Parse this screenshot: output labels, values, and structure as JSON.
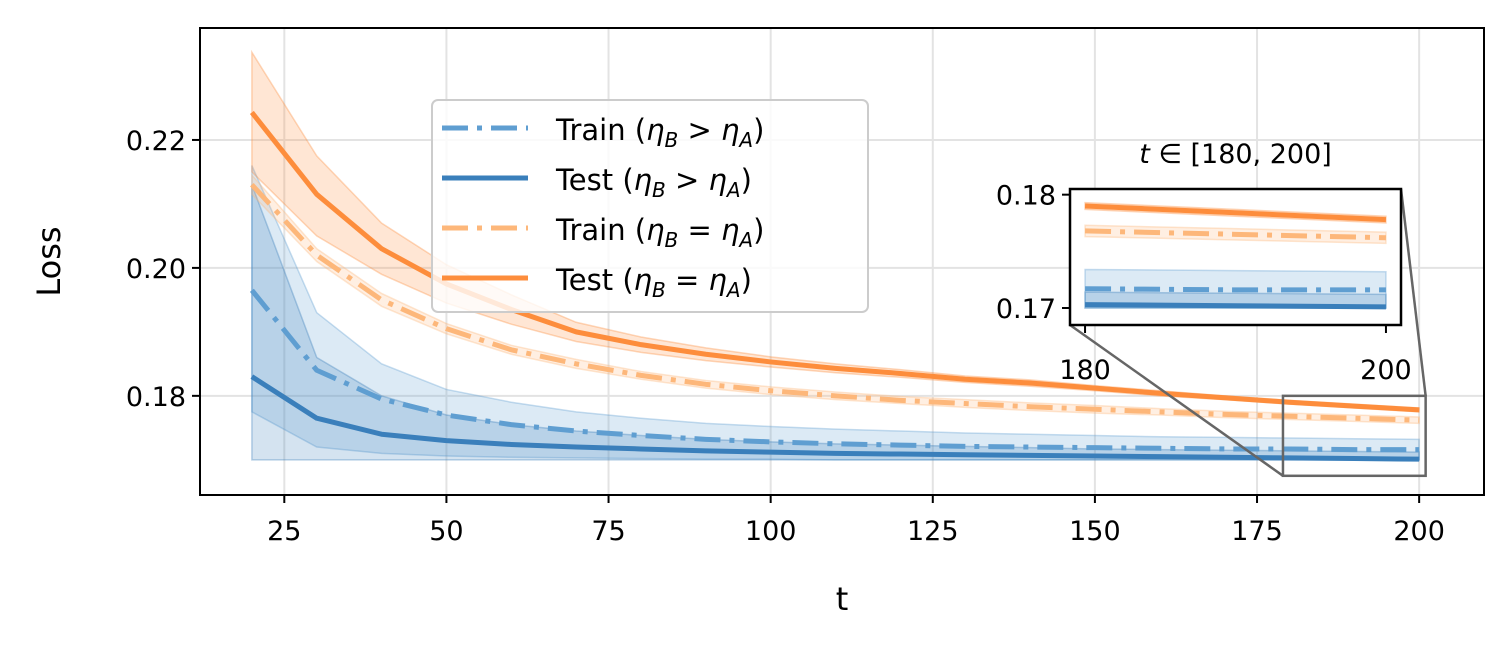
{
  "chart_data": {
    "type": "line",
    "xlabel": "t",
    "ylabel": "Loss",
    "xlim": [
      12,
      210
    ],
    "ylim": [
      0.1645,
      0.2375
    ],
    "xticks": [
      25,
      50,
      75,
      100,
      125,
      150,
      175,
      200
    ],
    "yticks": [
      0.18,
      0.2,
      0.22
    ],
    "xtick_labels": [
      "25",
      "50",
      "75",
      "100",
      "125",
      "150",
      "175",
      "200"
    ],
    "ytick_labels": [
      "0.18",
      "0.20",
      "0.22"
    ],
    "grid": true,
    "legend_position": "upper center",
    "x": [
      20,
      30,
      40,
      50,
      60,
      70,
      80,
      90,
      100,
      110,
      120,
      130,
      140,
      150,
      160,
      170,
      180,
      190,
      200
    ],
    "series": [
      {
        "name": "Train (η_B > η_A)",
        "label_parts": [
          "Train (",
          "η",
          "B",
          " > ",
          "η",
          "A",
          ")"
        ],
        "color": "#5f9ed1",
        "style": "dashdot",
        "values": [
          0.1965,
          0.184,
          0.1795,
          0.177,
          0.1755,
          0.1745,
          0.1738,
          0.1732,
          0.1728,
          0.1725,
          0.1723,
          0.1721,
          0.172,
          0.1719,
          0.1718,
          0.1717,
          0.1717,
          0.1716,
          0.1716
        ],
        "lower": [
          0.1775,
          0.172,
          0.171,
          0.1706,
          0.1704,
          0.1703,
          0.1702,
          0.1701,
          0.1701,
          0.17,
          0.17,
          0.17,
          0.17,
          0.17,
          0.17,
          0.17,
          0.17,
          0.17,
          0.17
        ],
        "upper": [
          0.216,
          0.193,
          0.185,
          0.181,
          0.179,
          0.1775,
          0.1765,
          0.1757,
          0.1752,
          0.1748,
          0.1745,
          0.1742,
          0.174,
          0.1738,
          0.1736,
          0.1735,
          0.1734,
          0.1733,
          0.1732
        ]
      },
      {
        "name": "Test (η_B > η_A)",
        "label_parts": [
          "Test (",
          "η",
          "B",
          " > ",
          "η",
          "A",
          ")"
        ],
        "color": "#3a7fbb",
        "style": "solid",
        "values": [
          0.183,
          0.1765,
          0.174,
          0.173,
          0.1724,
          0.172,
          0.1717,
          0.1714,
          0.1712,
          0.171,
          0.1709,
          0.1708,
          0.1707,
          0.1706,
          0.1705,
          0.1704,
          0.1703,
          0.1702,
          0.1701
        ],
        "lower": [
          0.17,
          0.17,
          0.17,
          0.17,
          0.17,
          0.17,
          0.17,
          0.17,
          0.17,
          0.17,
          0.17,
          0.17,
          0.17,
          0.17,
          0.17,
          0.17,
          0.17,
          0.17,
          0.17
        ],
        "upper": [
          0.213,
          0.186,
          0.18,
          0.177,
          0.1755,
          0.1745,
          0.1738,
          0.1732,
          0.1728,
          0.1725,
          0.1723,
          0.1721,
          0.1719,
          0.1717,
          0.1716,
          0.1715,
          0.1714,
          0.1713,
          0.1712
        ]
      },
      {
        "name": "Train (η_B = η_A)",
        "label_parts": [
          "Train (",
          "η",
          "B",
          " = ",
          "η",
          "A",
          ")"
        ],
        "color": "#fdb77a",
        "style": "dashdot",
        "values": [
          0.213,
          0.202,
          0.195,
          0.1905,
          0.1872,
          0.185,
          0.1832,
          0.1818,
          0.1808,
          0.18,
          0.1793,
          0.1788,
          0.1783,
          0.1779,
          0.1775,
          0.1771,
          0.1768,
          0.1765,
          0.1762
        ],
        "lower": [
          0.2115,
          0.201,
          0.194,
          0.1897,
          0.1865,
          0.1843,
          0.1826,
          0.1812,
          0.1802,
          0.1794,
          0.1788,
          0.1782,
          0.1777,
          0.1773,
          0.177,
          0.1766,
          0.1763,
          0.176,
          0.1757
        ],
        "upper": [
          0.2145,
          0.203,
          0.196,
          0.1913,
          0.1879,
          0.1857,
          0.1838,
          0.1824,
          0.1814,
          0.1806,
          0.1799,
          0.1794,
          0.1789,
          0.1785,
          0.178,
          0.1776,
          0.1773,
          0.177,
          0.1767
        ]
      },
      {
        "name": "Test (η_B = η_A)",
        "label_parts": [
          "Test (",
          "η",
          "B",
          " = ",
          "η",
          "A",
          ")"
        ],
        "color": "#fd8d3c",
        "style": "solid",
        "values": [
          0.2243,
          0.2115,
          0.203,
          0.1975,
          0.1935,
          0.19,
          0.188,
          0.1865,
          0.1853,
          0.1843,
          0.1835,
          0.1826,
          0.182,
          0.1812,
          0.1804,
          0.1797,
          0.179,
          0.1784,
          0.1778
        ],
        "lower": [
          0.215,
          0.205,
          0.199,
          0.1945,
          0.1912,
          0.1885,
          0.1868,
          0.1855,
          0.1845,
          0.1836,
          0.1829,
          0.1821,
          0.1815,
          0.1808,
          0.18,
          0.1794,
          0.1787,
          0.1781,
          0.1775
        ],
        "upper": [
          0.2337,
          0.2175,
          0.207,
          0.2005,
          0.1958,
          0.1915,
          0.1892,
          0.1875,
          0.1861,
          0.185,
          0.1841,
          0.1831,
          0.1825,
          0.1816,
          0.1808,
          0.18,
          0.1793,
          0.1787,
          0.1781
        ]
      }
    ],
    "inset": {
      "title_parts": [
        "t",
        " ∈ [180, 200]"
      ],
      "xlim": [
        179,
        201
      ],
      "ylim": [
        0.1685,
        0.1805
      ],
      "xticks": [
        180,
        200
      ],
      "yticks": [
        0.17,
        0.18
      ],
      "xtick_labels": [
        "180",
        "200"
      ],
      "ytick_labels": [
        "0.17",
        "0.18"
      ],
      "source_box_xlim": [
        179,
        201
      ],
      "source_box_ylim": [
        0.1675,
        0.18
      ]
    }
  }
}
